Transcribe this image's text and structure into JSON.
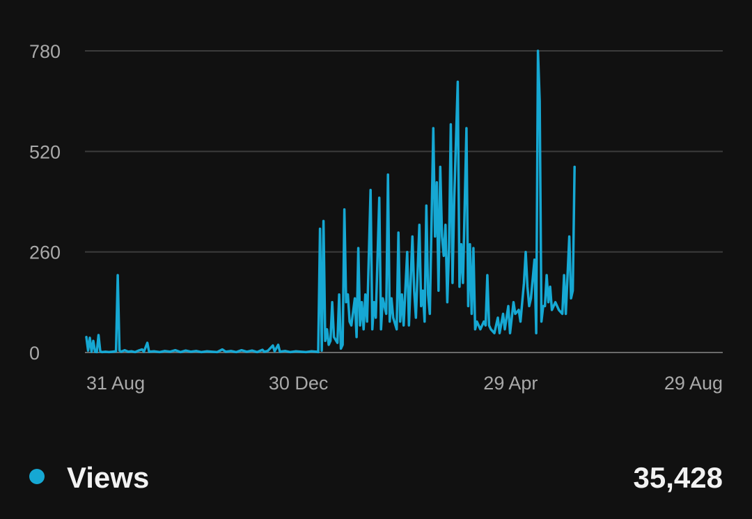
{
  "chart_data": {
    "type": "line",
    "y_ticks": [
      "0",
      "260",
      "520",
      "780"
    ],
    "y_tick_values": [
      0,
      260,
      520,
      780
    ],
    "ylim": [
      0,
      780
    ],
    "x_tick_labels": [
      "31 Aug",
      "30 Dec",
      "29 Apr",
      "29 Aug"
    ],
    "xlim": [
      "2022-08-31",
      "2023-08-31"
    ],
    "grid": true,
    "series": [
      {
        "name": "Views",
        "color": "#16a8d3",
        "points": [
          [
            "2022-08-31",
            40
          ],
          [
            "2022-09-01",
            5
          ],
          [
            "2022-09-02",
            38
          ],
          [
            "2022-09-03",
            2
          ],
          [
            "2022-09-04",
            30
          ],
          [
            "2022-09-05",
            2
          ],
          [
            "2022-09-06",
            1
          ],
          [
            "2022-09-07",
            45
          ],
          [
            "2022-09-08",
            3
          ],
          [
            "2022-09-09",
            1
          ],
          [
            "2022-09-11",
            2
          ],
          [
            "2022-09-13",
            1
          ],
          [
            "2022-09-15",
            2
          ],
          [
            "2022-09-17",
            3
          ],
          [
            "2022-09-18",
            200
          ],
          [
            "2022-09-19",
            5
          ],
          [
            "2022-09-20",
            2
          ],
          [
            "2022-09-22",
            6
          ],
          [
            "2022-09-24",
            2
          ],
          [
            "2022-09-26",
            3
          ],
          [
            "2022-09-28",
            1
          ],
          [
            "2022-09-30",
            5
          ],
          [
            "2022-10-02",
            8
          ],
          [
            "2022-10-03",
            2
          ],
          [
            "2022-10-05",
            25
          ],
          [
            "2022-10-06",
            2
          ],
          [
            "2022-10-09",
            3
          ],
          [
            "2022-10-12",
            1
          ],
          [
            "2022-10-15",
            4
          ],
          [
            "2022-10-18",
            2
          ],
          [
            "2022-10-21",
            6
          ],
          [
            "2022-10-24",
            1
          ],
          [
            "2022-10-27",
            5
          ],
          [
            "2022-10-30",
            2
          ],
          [
            "2022-11-02",
            4
          ],
          [
            "2022-11-05",
            1
          ],
          [
            "2022-11-08",
            3
          ],
          [
            "2022-11-11",
            2
          ],
          [
            "2022-11-14",
            1
          ],
          [
            "2022-11-17",
            8
          ],
          [
            "2022-11-19",
            2
          ],
          [
            "2022-11-22",
            4
          ],
          [
            "2022-11-25",
            1
          ],
          [
            "2022-11-28",
            6
          ],
          [
            "2022-12-01",
            2
          ],
          [
            "2022-12-04",
            5
          ],
          [
            "2022-12-07",
            1
          ],
          [
            "2022-12-10",
            7
          ],
          [
            "2022-12-11",
            2
          ],
          [
            "2022-12-13",
            4
          ],
          [
            "2022-12-16",
            18
          ],
          [
            "2022-12-17",
            3
          ],
          [
            "2022-12-19",
            20
          ],
          [
            "2022-12-20",
            2
          ],
          [
            "2022-12-23",
            4
          ],
          [
            "2022-12-26",
            1
          ],
          [
            "2022-12-29",
            3
          ],
          [
            "2023-01-01",
            2
          ],
          [
            "2023-01-04",
            1
          ],
          [
            "2023-01-07",
            3
          ],
          [
            "2023-01-10",
            2
          ],
          [
            "2023-01-11",
            1
          ],
          [
            "2023-01-12",
            320
          ],
          [
            "2023-01-13",
            5
          ],
          [
            "2023-01-14",
            340
          ],
          [
            "2023-01-15",
            30
          ],
          [
            "2023-01-16",
            60
          ],
          [
            "2023-01-17",
            20
          ],
          [
            "2023-01-18",
            30
          ],
          [
            "2023-01-19",
            130
          ],
          [
            "2023-01-20",
            40
          ],
          [
            "2023-01-22",
            25
          ],
          [
            "2023-01-23",
            150
          ],
          [
            "2023-01-24",
            10
          ],
          [
            "2023-01-25",
            20
          ],
          [
            "2023-01-26",
            370
          ],
          [
            "2023-01-27",
            130
          ],
          [
            "2023-01-28",
            150
          ],
          [
            "2023-01-29",
            80
          ],
          [
            "2023-01-30",
            70
          ],
          [
            "2023-02-01",
            140
          ],
          [
            "2023-02-02",
            40
          ],
          [
            "2023-02-03",
            270
          ],
          [
            "2023-02-04",
            70
          ],
          [
            "2023-02-05",
            130
          ],
          [
            "2023-02-06",
            60
          ],
          [
            "2023-02-07",
            150
          ],
          [
            "2023-02-08",
            80
          ],
          [
            "2023-02-10",
            420
          ],
          [
            "2023-02-11",
            60
          ],
          [
            "2023-02-12",
            130
          ],
          [
            "2023-02-13",
            90
          ],
          [
            "2023-02-15",
            400
          ],
          [
            "2023-02-16",
            60
          ],
          [
            "2023-02-17",
            140
          ],
          [
            "2023-02-19",
            100
          ],
          [
            "2023-02-20",
            460
          ],
          [
            "2023-02-21",
            80
          ],
          [
            "2023-02-22",
            140
          ],
          [
            "2023-02-23",
            90
          ],
          [
            "2023-02-25",
            60
          ],
          [
            "2023-02-26",
            310
          ],
          [
            "2023-02-27",
            80
          ],
          [
            "2023-02-28",
            150
          ],
          [
            "2023-03-01",
            70
          ],
          [
            "2023-03-03",
            260
          ],
          [
            "2023-03-04",
            70
          ],
          [
            "2023-03-06",
            300
          ],
          [
            "2023-03-07",
            160
          ],
          [
            "2023-03-08",
            90
          ],
          [
            "2023-03-10",
            330
          ],
          [
            "2023-03-11",
            120
          ],
          [
            "2023-03-12",
            160
          ],
          [
            "2023-03-13",
            80
          ],
          [
            "2023-03-14",
            380
          ],
          [
            "2023-03-15",
            150
          ],
          [
            "2023-03-16",
            100
          ],
          [
            "2023-03-18",
            580
          ],
          [
            "2023-03-19",
            300
          ],
          [
            "2023-03-20",
            440
          ],
          [
            "2023-03-21",
            160
          ],
          [
            "2023-03-22",
            480
          ],
          [
            "2023-03-23",
            300
          ],
          [
            "2023-03-24",
            250
          ],
          [
            "2023-03-25",
            330
          ],
          [
            "2023-03-26",
            130
          ],
          [
            "2023-03-27",
            270
          ],
          [
            "2023-03-28",
            590
          ],
          [
            "2023-03-29",
            180
          ],
          [
            "2023-03-30",
            400
          ],
          [
            "2023-04-01",
            700
          ],
          [
            "2023-04-02",
            170
          ],
          [
            "2023-04-03",
            280
          ],
          [
            "2023-04-04",
            180
          ],
          [
            "2023-04-06",
            580
          ],
          [
            "2023-04-07",
            120
          ],
          [
            "2023-04-08",
            280
          ],
          [
            "2023-04-09",
            100
          ],
          [
            "2023-04-10",
            270
          ],
          [
            "2023-04-11",
            60
          ],
          [
            "2023-04-12",
            80
          ],
          [
            "2023-04-14",
            60
          ],
          [
            "2023-04-16",
            80
          ],
          [
            "2023-04-17",
            70
          ],
          [
            "2023-04-18",
            200
          ],
          [
            "2023-04-19",
            70
          ],
          [
            "2023-04-20",
            60
          ],
          [
            "2023-04-22",
            50
          ],
          [
            "2023-04-24",
            90
          ],
          [
            "2023-04-25",
            50
          ],
          [
            "2023-04-27",
            100
          ],
          [
            "2023-04-28",
            60
          ],
          [
            "2023-04-30",
            120
          ],
          [
            "2023-05-01",
            50
          ],
          [
            "2023-05-03",
            130
          ],
          [
            "2023-05-04",
            100
          ],
          [
            "2023-05-06",
            110
          ],
          [
            "2023-05-07",
            80
          ],
          [
            "2023-05-09",
            180
          ],
          [
            "2023-05-10",
            260
          ],
          [
            "2023-05-11",
            170
          ],
          [
            "2023-05-12",
            120
          ],
          [
            "2023-05-13",
            140
          ],
          [
            "2023-05-15",
            240
          ],
          [
            "2023-05-16",
            50
          ],
          [
            "2023-05-17",
            780
          ],
          [
            "2023-05-18",
            650
          ],
          [
            "2023-05-19",
            80
          ],
          [
            "2023-05-20",
            120
          ],
          [
            "2023-05-21",
            120
          ],
          [
            "2023-05-22",
            200
          ],
          [
            "2023-05-23",
            130
          ],
          [
            "2023-05-24",
            170
          ],
          [
            "2023-05-25",
            110
          ],
          [
            "2023-05-27",
            130
          ],
          [
            "2023-05-29",
            110
          ],
          [
            "2023-05-31",
            100
          ],
          [
            "2023-06-01",
            200
          ],
          [
            "2023-06-02",
            100
          ],
          [
            "2023-06-04",
            300
          ],
          [
            "2023-06-05",
            140
          ],
          [
            "2023-06-06",
            160
          ],
          [
            "2023-06-07",
            480
          ]
        ]
      }
    ]
  },
  "legend": {
    "label": "Views",
    "total": "35,428",
    "dot_color": "#16a8d3"
  }
}
